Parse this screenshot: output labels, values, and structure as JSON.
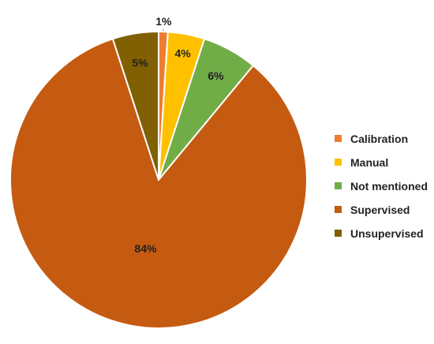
{
  "chart_data": {
    "type": "pie",
    "title": "",
    "categories": [
      "Calibration",
      "Manual",
      "Not mentioned",
      "Supervised",
      "Unsupervised"
    ],
    "values": [
      1,
      4,
      6,
      84,
      5
    ],
    "labels": [
      "1%",
      "4%",
      "6%",
      "84%",
      "5%"
    ],
    "colors": [
      "#ED7D31",
      "#FFC000",
      "#70AD47",
      "#C55A11",
      "#806000"
    ],
    "legend_position": "right",
    "start_angle_deg": 0,
    "direction": "clockwise"
  }
}
